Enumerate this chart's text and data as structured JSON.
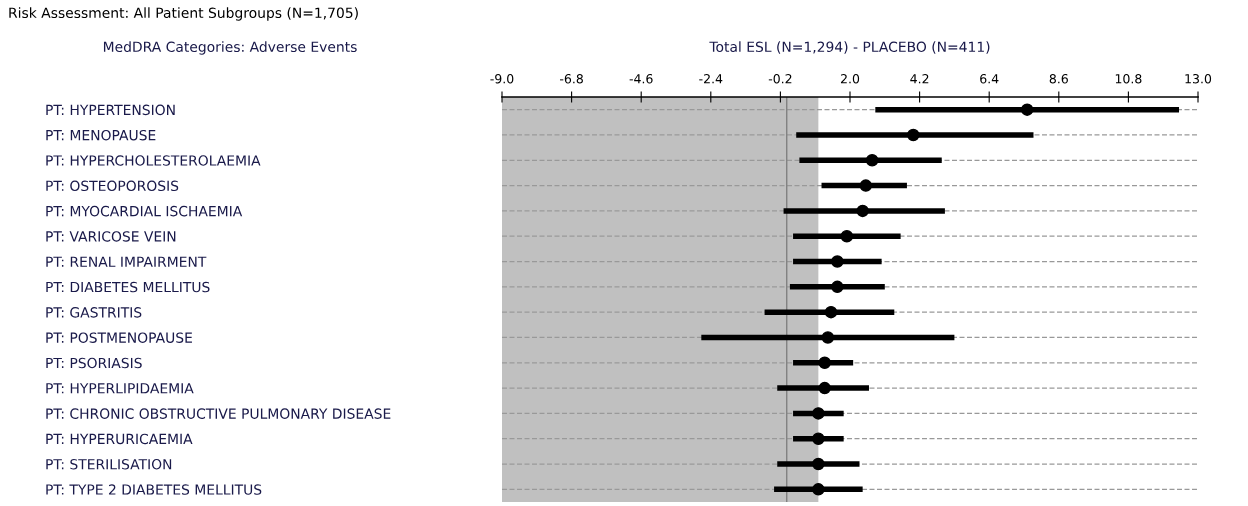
{
  "chart_data": {
    "type": "scatter",
    "orientation": "horizontal",
    "title": "Risk Assessment: All Patient Subgroups (N=1,705)",
    "ylabel": "MedDRA Categories: Adverse Events",
    "xlabel": "Total ESL (N=1,294) - PLACEBO (N=411)",
    "categories": [
      "PT: HYPERTENSION",
      "PT: MENOPAUSE",
      "PT: HYPERCHOLESTEROLAEMIA",
      "PT: OSTEOPOROSIS",
      "PT: MYOCARDIAL ISCHAEMIA",
      "PT: VARICOSE VEIN",
      "PT: RENAL IMPAIRMENT",
      "PT: DIABETES MELLITUS",
      "PT: GASTRITIS",
      "PT: POSTMENOPAUSE",
      "PT: PSORIASIS",
      "PT: HYPERLIPIDAEMIA",
      "PT: CHRONIC OBSTRUCTIVE PULMONARY DISEASE",
      "PT: HYPERURICAEMIA",
      "PT: STERILISATION",
      "PT: TYPE 2 DIABETES MELLITUS"
    ],
    "series": [
      {
        "color": "#000000",
        "values": [
          7.6,
          4.0,
          2.7,
          2.5,
          2.4,
          1.9,
          1.6,
          1.6,
          1.4,
          1.3,
          1.2,
          1.2,
          1.0,
          1.0,
          1.0,
          1.0
        ],
        "errors": [
          [
            2.8,
            12.4
          ],
          [
            0.3,
            7.8
          ],
          [
            0.4,
            4.9
          ],
          [
            1.1,
            3.8
          ],
          [
            -0.1,
            5.0
          ],
          [
            0.2,
            3.6
          ],
          [
            0.2,
            3.0
          ],
          [
            0.1,
            3.1
          ],
          [
            -0.7,
            3.4
          ],
          [
            -2.7,
            5.3
          ],
          [
            0.2,
            2.1
          ],
          [
            -0.3,
            2.6
          ],
          [
            0.2,
            1.8
          ],
          [
            0.2,
            1.8
          ],
          [
            -0.3,
            2.3
          ],
          [
            -0.4,
            2.4
          ]
        ]
      }
    ],
    "xlim": [
      -9.0,
      13.0
    ],
    "xticks": [
      {
        "value": -9.0,
        "label": "-9.0"
      },
      {
        "value": -6.8,
        "label": "-6.8"
      },
      {
        "value": -4.6,
        "label": "-4.6"
      },
      {
        "value": -2.4,
        "label": "-2.4"
      },
      {
        "value": -0.2,
        "label": "-0.2"
      },
      {
        "value": 2.0,
        "label": "2.0"
      },
      {
        "value": 4.2,
        "label": "4.2"
      },
      {
        "value": 6.4,
        "label": "6.4"
      },
      {
        "value": 8.6,
        "label": "8.6"
      },
      {
        "value": 10.8,
        "label": "10.8"
      },
      {
        "value": 13.0,
        "label": "13.0"
      }
    ],
    "ref_lines": [
      {
        "axis": "x",
        "value": 0,
        "color": "#808080"
      }
    ],
    "bands": [
      {
        "axis": "x",
        "from": -9.0,
        "to": 1.0,
        "color": "#c0c0c0"
      }
    ],
    "grid": "y",
    "marker": "circle",
    "legend": false
  }
}
